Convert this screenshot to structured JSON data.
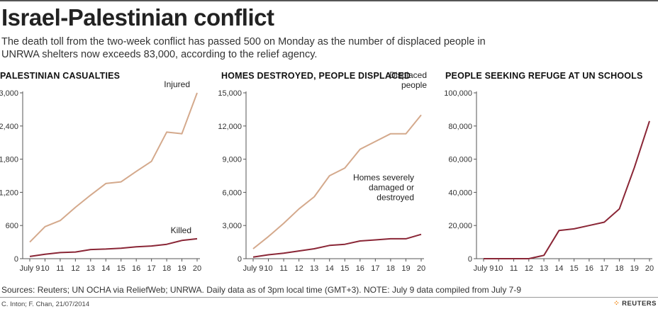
{
  "title": "Israel-Palestinian conflict",
  "subtitle": "The death toll from the two-week conflict has passed 500 on Monday as the number of displaced people in UNRWA shelters now exceeds 83,000, according to the relief agency.",
  "footer": {
    "sources": "Sources: Reuters; UN OCHA via ReliefWeb; UNRWA.  Daily data as of 3pm local time (GMT+3).   NOTE: July 9 data compiled from July 7-9",
    "credit": "C. Inton; F. Chan, 21/07/2014",
    "brand": "REUTERS"
  },
  "colors": {
    "light": "#d4a98c",
    "dark": "#8a2636",
    "axis": "#555555"
  },
  "chart_data": [
    {
      "type": "line",
      "title": "PALESTINIAN CASUALTIES",
      "categories": [
        "July 9",
        "10",
        "11",
        "12",
        "13",
        "14",
        "15",
        "16",
        "17",
        "18",
        "19",
        "20"
      ],
      "ylim": [
        0,
        3000
      ],
      "yticks": [
        0,
        600,
        1200,
        1800,
        2400,
        3000
      ],
      "ytick_labels": [
        "0",
        "600",
        "1,200",
        "1,800",
        "2,400",
        "3,000"
      ],
      "series": [
        {
          "name": "Injured",
          "color": "light",
          "values": [
            300,
            580,
            690,
            930,
            1150,
            1360,
            1390,
            1580,
            1760,
            2290,
            2260,
            3000
          ]
        },
        {
          "name": "Killed",
          "color": "dark",
          "values": [
            40,
            80,
            110,
            120,
            165,
            175,
            190,
            215,
            230,
            260,
            330,
            360
          ]
        }
      ],
      "annotations": [
        {
          "series": "Injured",
          "lines": [
            "Injured"
          ]
        },
        {
          "series": "Killed",
          "lines": [
            "Killed"
          ]
        }
      ]
    },
    {
      "type": "line",
      "title": "HOMES DESTROYED, PEOPLE DISPLACED",
      "categories": [
        "July 9",
        "10",
        "11",
        "12",
        "13",
        "14",
        "15",
        "16",
        "17",
        "18",
        "19",
        "20"
      ],
      "ylim": [
        0,
        15000
      ],
      "yticks": [
        0,
        3000,
        6000,
        9000,
        12000,
        15000
      ],
      "ytick_labels": [
        "0",
        "3,000",
        "6,000",
        "9,000",
        "12,000",
        "15,000"
      ],
      "series": [
        {
          "name": "Displaced people",
          "color": "light",
          "values": [
            900,
            2000,
            3200,
            4500,
            5600,
            7500,
            8200,
            9900,
            10600,
            11300,
            11300,
            13000
          ]
        },
        {
          "name": "Homes severely damaged or destroyed",
          "color": "dark",
          "values": [
            150,
            350,
            500,
            700,
            900,
            1200,
            1300,
            1600,
            1700,
            1800,
            1800,
            2200
          ]
        }
      ],
      "annotations": [
        {
          "series": "Displaced people",
          "lines": [
            "Displaced",
            "people"
          ]
        },
        {
          "series": "Homes severely damaged or destroyed",
          "lines": [
            "Homes severely",
            "damaged or",
            "destroyed"
          ]
        }
      ]
    },
    {
      "type": "line",
      "title": "PEOPLE SEEKING REFUGE AT UN SCHOOLS",
      "categories": [
        "July 9",
        "10",
        "11",
        "12",
        "13",
        "14",
        "15",
        "16",
        "17",
        "18",
        "19",
        "20"
      ],
      "ylim": [
        0,
        100000
      ],
      "yticks": [
        0,
        20000,
        40000,
        60000,
        80000,
        100000
      ],
      "ytick_labels": [
        "0",
        "20,000",
        "40,000",
        "60,000",
        "80,000",
        "100,000"
      ],
      "series": [
        {
          "name": "People seeking refuge",
          "color": "dark",
          "values": [
            0,
            0,
            0,
            0,
            2000,
            17000,
            18000,
            20000,
            22000,
            30000,
            55000,
            83000
          ]
        }
      ],
      "annotations": []
    }
  ]
}
